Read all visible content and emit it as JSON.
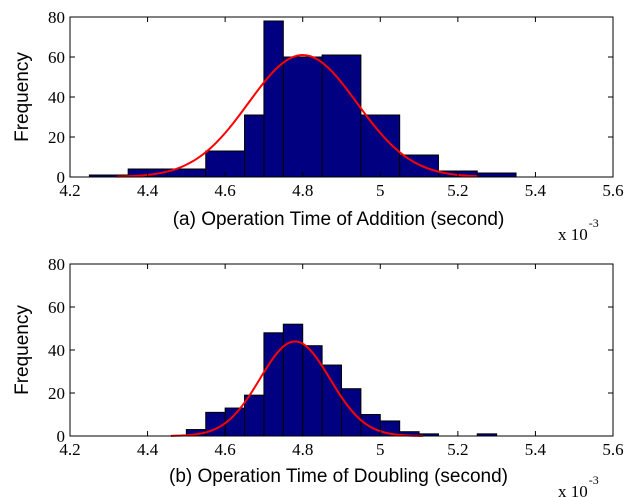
{
  "chart_data": [
    {
      "type": "bar",
      "overlay": "line",
      "xlabel": "(a) Operation Time of Addition (second)",
      "ylabel": "Frequency",
      "x_multiplier": "x 10",
      "x_exponent": "-3",
      "xlim": [
        4.2,
        5.6
      ],
      "ylim": [
        0,
        80
      ],
      "xticks": [
        "4.2",
        "4.4",
        "4.6",
        "4.8",
        "5",
        "5.2",
        "5.4",
        "5.6"
      ],
      "yticks": [
        "0",
        "20",
        "40",
        "60",
        "80"
      ],
      "bar_color": "#000080",
      "line_color": "#ff0000",
      "grid": false,
      "bins": [
        {
          "x0": 4.25,
          "x1": 4.35,
          "value": 1
        },
        {
          "x0": 4.35,
          "x1": 4.45,
          "value": 4
        },
        {
          "x0": 4.45,
          "x1": 4.55,
          "value": 4
        },
        {
          "x0": 4.55,
          "x1": 4.65,
          "value": 13
        },
        {
          "x0": 4.65,
          "x1": 4.7,
          "value": 31
        },
        {
          "x0": 4.7,
          "x1": 4.75,
          "value": 78
        },
        {
          "x0": 4.75,
          "x1": 4.85,
          "value": 60
        },
        {
          "x0": 4.85,
          "x1": 4.95,
          "value": 61
        },
        {
          "x0": 4.95,
          "x1": 5.05,
          "value": 31
        },
        {
          "x0": 5.05,
          "x1": 5.15,
          "value": 11
        },
        {
          "x0": 5.15,
          "x1": 5.25,
          "value": 3
        },
        {
          "x0": 5.25,
          "x1": 5.35,
          "value": 2
        }
      ],
      "fit_curve": {
        "mean": 4.8,
        "sd": 0.14,
        "peak": 61,
        "x_from": 4.32,
        "x_to": 5.25
      }
    },
    {
      "type": "bar",
      "overlay": "line",
      "xlabel": "(b) Operation Time of Doubling (second)",
      "ylabel": "Frequency",
      "x_multiplier": "x 10",
      "x_exponent": "-3",
      "xlim": [
        4.2,
        5.6
      ],
      "ylim": [
        0,
        80
      ],
      "xticks": [
        "4.2",
        "4.4",
        "4.6",
        "4.8",
        "5",
        "5.2",
        "5.4",
        "5.6"
      ],
      "yticks": [
        "0",
        "20",
        "40",
        "60",
        "80"
      ],
      "bar_color": "#000080",
      "line_color": "#ff0000",
      "grid": false,
      "bins": [
        {
          "x0": 4.5,
          "x1": 4.55,
          "value": 3
        },
        {
          "x0": 4.55,
          "x1": 4.6,
          "value": 11
        },
        {
          "x0": 4.6,
          "x1": 4.65,
          "value": 13
        },
        {
          "x0": 4.65,
          "x1": 4.7,
          "value": 19
        },
        {
          "x0": 4.7,
          "x1": 4.75,
          "value": 48
        },
        {
          "x0": 4.75,
          "x1": 4.8,
          "value": 52
        },
        {
          "x0": 4.8,
          "x1": 4.85,
          "value": 42
        },
        {
          "x0": 4.85,
          "x1": 4.9,
          "value": 33
        },
        {
          "x0": 4.9,
          "x1": 4.95,
          "value": 22
        },
        {
          "x0": 4.95,
          "x1": 5.0,
          "value": 10
        },
        {
          "x0": 5.0,
          "x1": 5.05,
          "value": 7
        },
        {
          "x0": 5.05,
          "x1": 5.1,
          "value": 2
        },
        {
          "x0": 5.1,
          "x1": 5.15,
          "value": 1
        },
        {
          "x0": 5.25,
          "x1": 5.3,
          "value": 1
        }
      ],
      "fit_curve": {
        "mean": 4.78,
        "sd": 0.09,
        "peak": 44,
        "x_from": 4.46,
        "x_to": 5.11
      }
    }
  ]
}
